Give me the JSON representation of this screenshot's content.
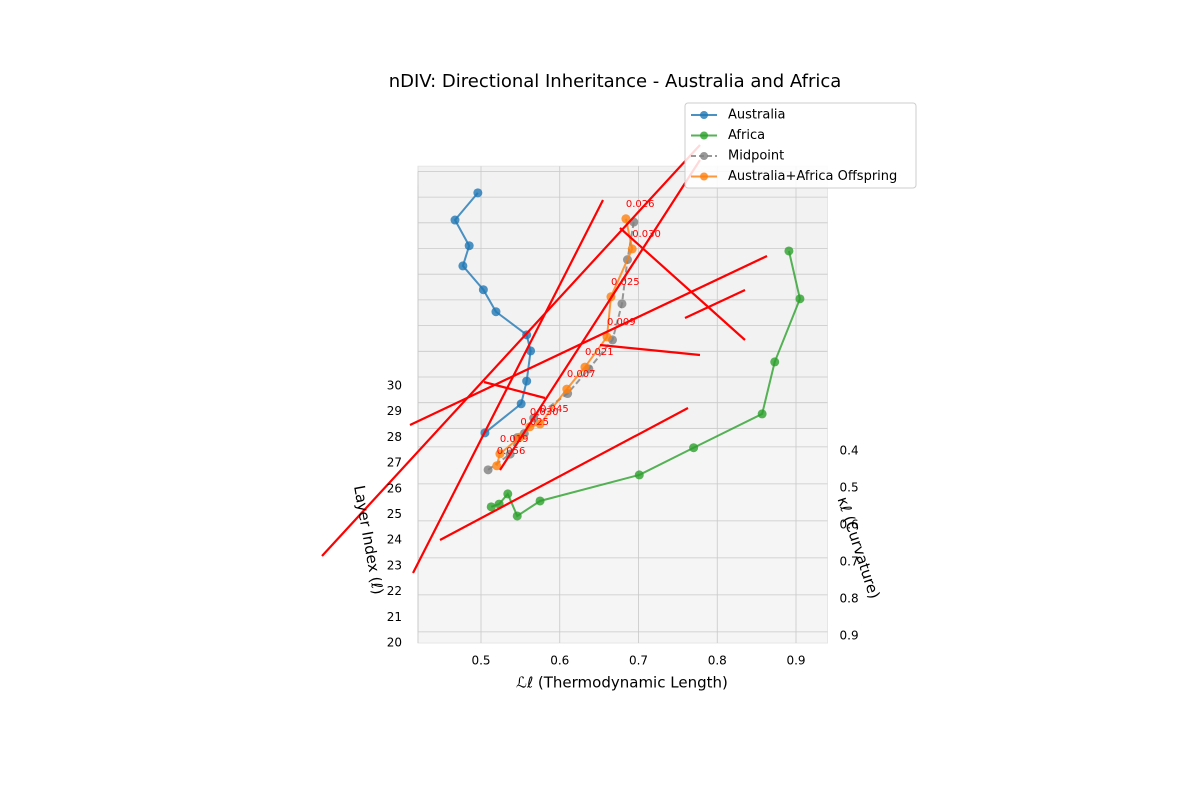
{
  "chart_data": {
    "type": "line3d",
    "title": "nDIV: Directional Inheritance - Australia and Africa",
    "xlabel": "ℒℓ (Thermodynamic Length)",
    "ylabel": "κℓ (Curvature)",
    "zlabel": "Layer Index (ℓ)",
    "xlim": [
      0.42,
      0.94
    ],
    "ylim": [
      0.35,
      0.93
    ],
    "zlim": [
      20,
      30.2
    ],
    "xticks": [
      0.5,
      0.6,
      0.7,
      0.8,
      0.9
    ],
    "yticks": [
      0.4,
      0.5,
      0.6,
      0.7,
      0.8,
      0.9
    ],
    "zticks": [
      20,
      21,
      22,
      23,
      24,
      25,
      26,
      27,
      28,
      29,
      30
    ],
    "grid": true,
    "legend": "upper right",
    "series": [
      {
        "name": "Australia",
        "color": "#1f77b4",
        "style": "solid",
        "x": [
          0.496,
          0.467,
          0.485,
          0.477,
          0.503,
          0.519,
          0.558,
          0.563,
          0.558,
          0.551,
          0.505
        ],
        "y": [
          0.408,
          0.412,
          0.412,
          0.397,
          0.392,
          0.382,
          0.375,
          0.349,
          0.361,
          0.353,
          0.362
        ],
        "z": [
          30,
          29,
          28,
          27,
          26,
          25,
          24,
          23,
          22,
          21,
          20
        ]
      },
      {
        "name": "Africa",
        "color": "#2ca02c",
        "style": "solid",
        "x": [
          0.891,
          0.905,
          0.873,
          0.857,
          0.77,
          0.701,
          0.575,
          0.546,
          0.534,
          0.523,
          0.513
        ],
        "y": [
          0.565,
          0.625,
          0.726,
          0.797,
          0.819,
          0.823,
          0.824,
          0.795,
          0.666,
          0.624,
          0.562
        ],
        "z": [
          30,
          29,
          28,
          27,
          26,
          25,
          24,
          23,
          22,
          21,
          20
        ]
      },
      {
        "name": "Midpoint",
        "color": "#808080",
        "style": "dashed",
        "x": [
          0.694,
          0.686,
          0.679,
          0.667,
          0.637,
          0.61,
          0.567,
          0.555,
          0.546,
          0.537,
          0.509
        ],
        "y": [
          0.487,
          0.519,
          0.569,
          0.597,
          0.606,
          0.603,
          0.6,
          0.572,
          0.514,
          0.489,
          0.462
        ],
        "z": [
          30,
          29,
          28,
          27,
          26,
          25,
          24,
          23,
          22,
          21,
          20
        ]
      },
      {
        "name": "Australia+Africa Offspring",
        "color": "#ff7f0e",
        "style": "solid",
        "x": [
          0.684,
          0.692,
          0.665,
          0.66,
          0.632,
          0.609,
          0.575,
          0.562,
          0.55,
          0.524,
          0.52
        ],
        "y": [
          0.478,
          0.49,
          0.55,
          0.589,
          0.601,
          0.591,
          0.616,
          0.554,
          0.512,
          0.488,
          0.451
        ],
        "z": [
          30,
          29,
          28,
          27,
          26,
          25,
          24,
          23,
          22,
          21,
          20
        ],
        "point_labels": [
          "0.026",
          "0.030",
          "0.025",
          "0.009",
          "0.021",
          "0.007",
          "0.045",
          "0.030",
          "0.025",
          "0.019",
          "0.056"
        ],
        "label_color": "#ff0000"
      }
    ]
  }
}
